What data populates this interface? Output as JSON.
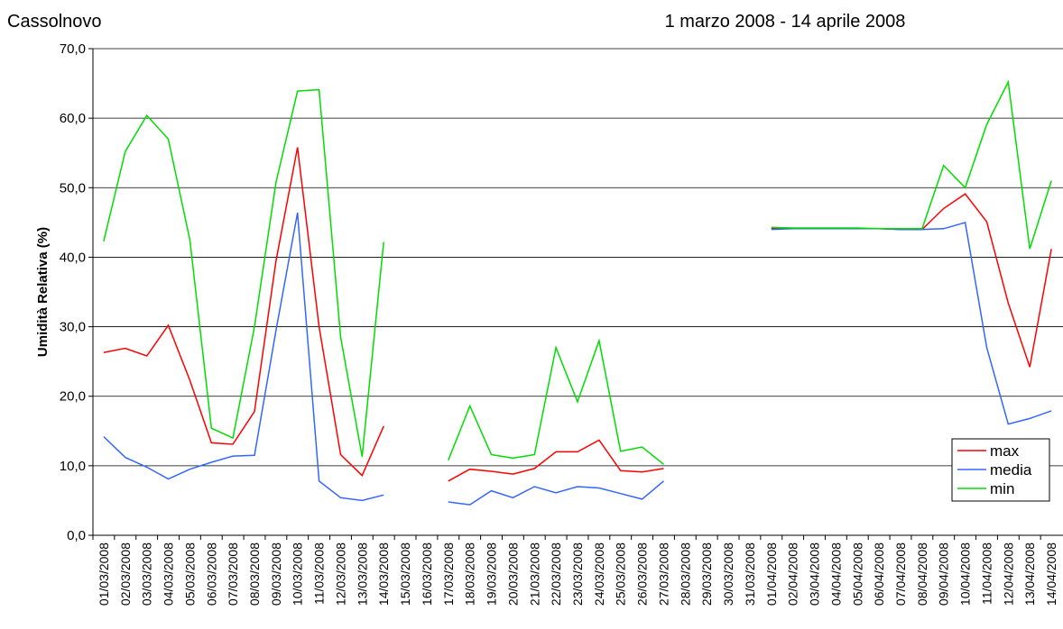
{
  "chart_data": {
    "type": "line",
    "title": "Cassolnovo",
    "subtitle": "1 marzo 2008 - 14 aprile 2008",
    "y_label": "Umidità Relativa (%)",
    "categories": [
      "01/03/2008",
      "02/03/2008",
      "03/03/2008",
      "04/03/2008",
      "05/03/2008",
      "06/03/2008",
      "07/03/2008",
      "08/03/2008",
      "09/03/2008",
      "10/03/2008",
      "11/03/2008",
      "12/03/2008",
      "13/03/2008",
      "14/03/2008",
      "15/03/2008",
      "16/03/2008",
      "17/03/2008",
      "18/03/2008",
      "19/03/2008",
      "20/03/2008",
      "21/03/2008",
      "22/03/2008",
      "23/03/2008",
      "24/03/2008",
      "25/03/2008",
      "26/03/2008",
      "27/03/2008",
      "28/03/2008",
      "29/03/2008",
      "30/03/2008",
      "31/03/2008",
      "01/04/2008",
      "02/04/2008",
      "03/04/2008",
      "04/04/2008",
      "05/04/2008",
      "06/04/2008",
      "07/04/2008",
      "08/04/2008",
      "09/04/2008",
      "10/04/2008",
      "11/04/2008",
      "12/04/2008",
      "13/04/2008",
      "14/04/2008"
    ],
    "series": [
      {
        "name": "max",
        "color": "#ff0000",
        "values": [
          26.3,
          26.9,
          25.8,
          30.2,
          22.3,
          13.3,
          13.1,
          17.8,
          39.5,
          55.8,
          30.0,
          11.6,
          8.6,
          15.7,
          null,
          null,
          7.8,
          9.5,
          9.2,
          8.8,
          9.6,
          12.0,
          12.0,
          13.7,
          9.3,
          9.1,
          9.6,
          null,
          null,
          null,
          null,
          44.1,
          44.1,
          44.1,
          44.1,
          44.1,
          44.1,
          44.0,
          44.0,
          47.0,
          49.1,
          45.1,
          33.4,
          24.2,
          41.2
        ]
      },
      {
        "name": "media",
        "color": "#3366ff",
        "values": [
          14.2,
          11.2,
          9.8,
          8.1,
          9.5,
          10.5,
          11.4,
          11.5,
          29.5,
          46.4,
          7.8,
          5.4,
          5.0,
          5.8,
          null,
          null,
          4.8,
          4.4,
          6.4,
          5.4,
          7.0,
          6.1,
          7.0,
          6.8,
          6.0,
          5.2,
          7.8,
          null,
          null,
          null,
          null,
          44.0,
          44.1,
          44.1,
          44.1,
          44.1,
          44.1,
          44.0,
          44.0,
          44.1,
          45.0,
          27.0,
          16.0,
          16.8,
          17.9
        ]
      },
      {
        "name": "min",
        "color": "#00dd00",
        "values": [
          42.3,
          55.2,
          60.4,
          57.0,
          42.5,
          15.4,
          14.0,
          30.0,
          50.8,
          63.9,
          64.1,
          28.5,
          11.3,
          42.2,
          null,
          null,
          10.8,
          18.6,
          11.6,
          11.1,
          11.6,
          27.0,
          19.2,
          28.0,
          12.1,
          12.7,
          10.2,
          null,
          null,
          null,
          null,
          44.3,
          44.2,
          44.2,
          44.2,
          44.2,
          44.1,
          44.1,
          44.1,
          53.2,
          50.0,
          59.1,
          65.2,
          41.2,
          51.0
        ]
      }
    ],
    "ylim": [
      0,
      70
    ],
    "yticks": [
      {
        "value": 0,
        "label": "0,0"
      },
      {
        "value": 10,
        "label": "10,0"
      },
      {
        "value": 20,
        "label": "20,0"
      },
      {
        "value": 30,
        "label": "30,0"
      },
      {
        "value": 40,
        "label": "40,0"
      },
      {
        "value": 50,
        "label": "50,0"
      },
      {
        "value": 60,
        "label": "60,0"
      },
      {
        "value": 70,
        "label": "70,0"
      }
    ],
    "grid": true,
    "legend": "right"
  }
}
